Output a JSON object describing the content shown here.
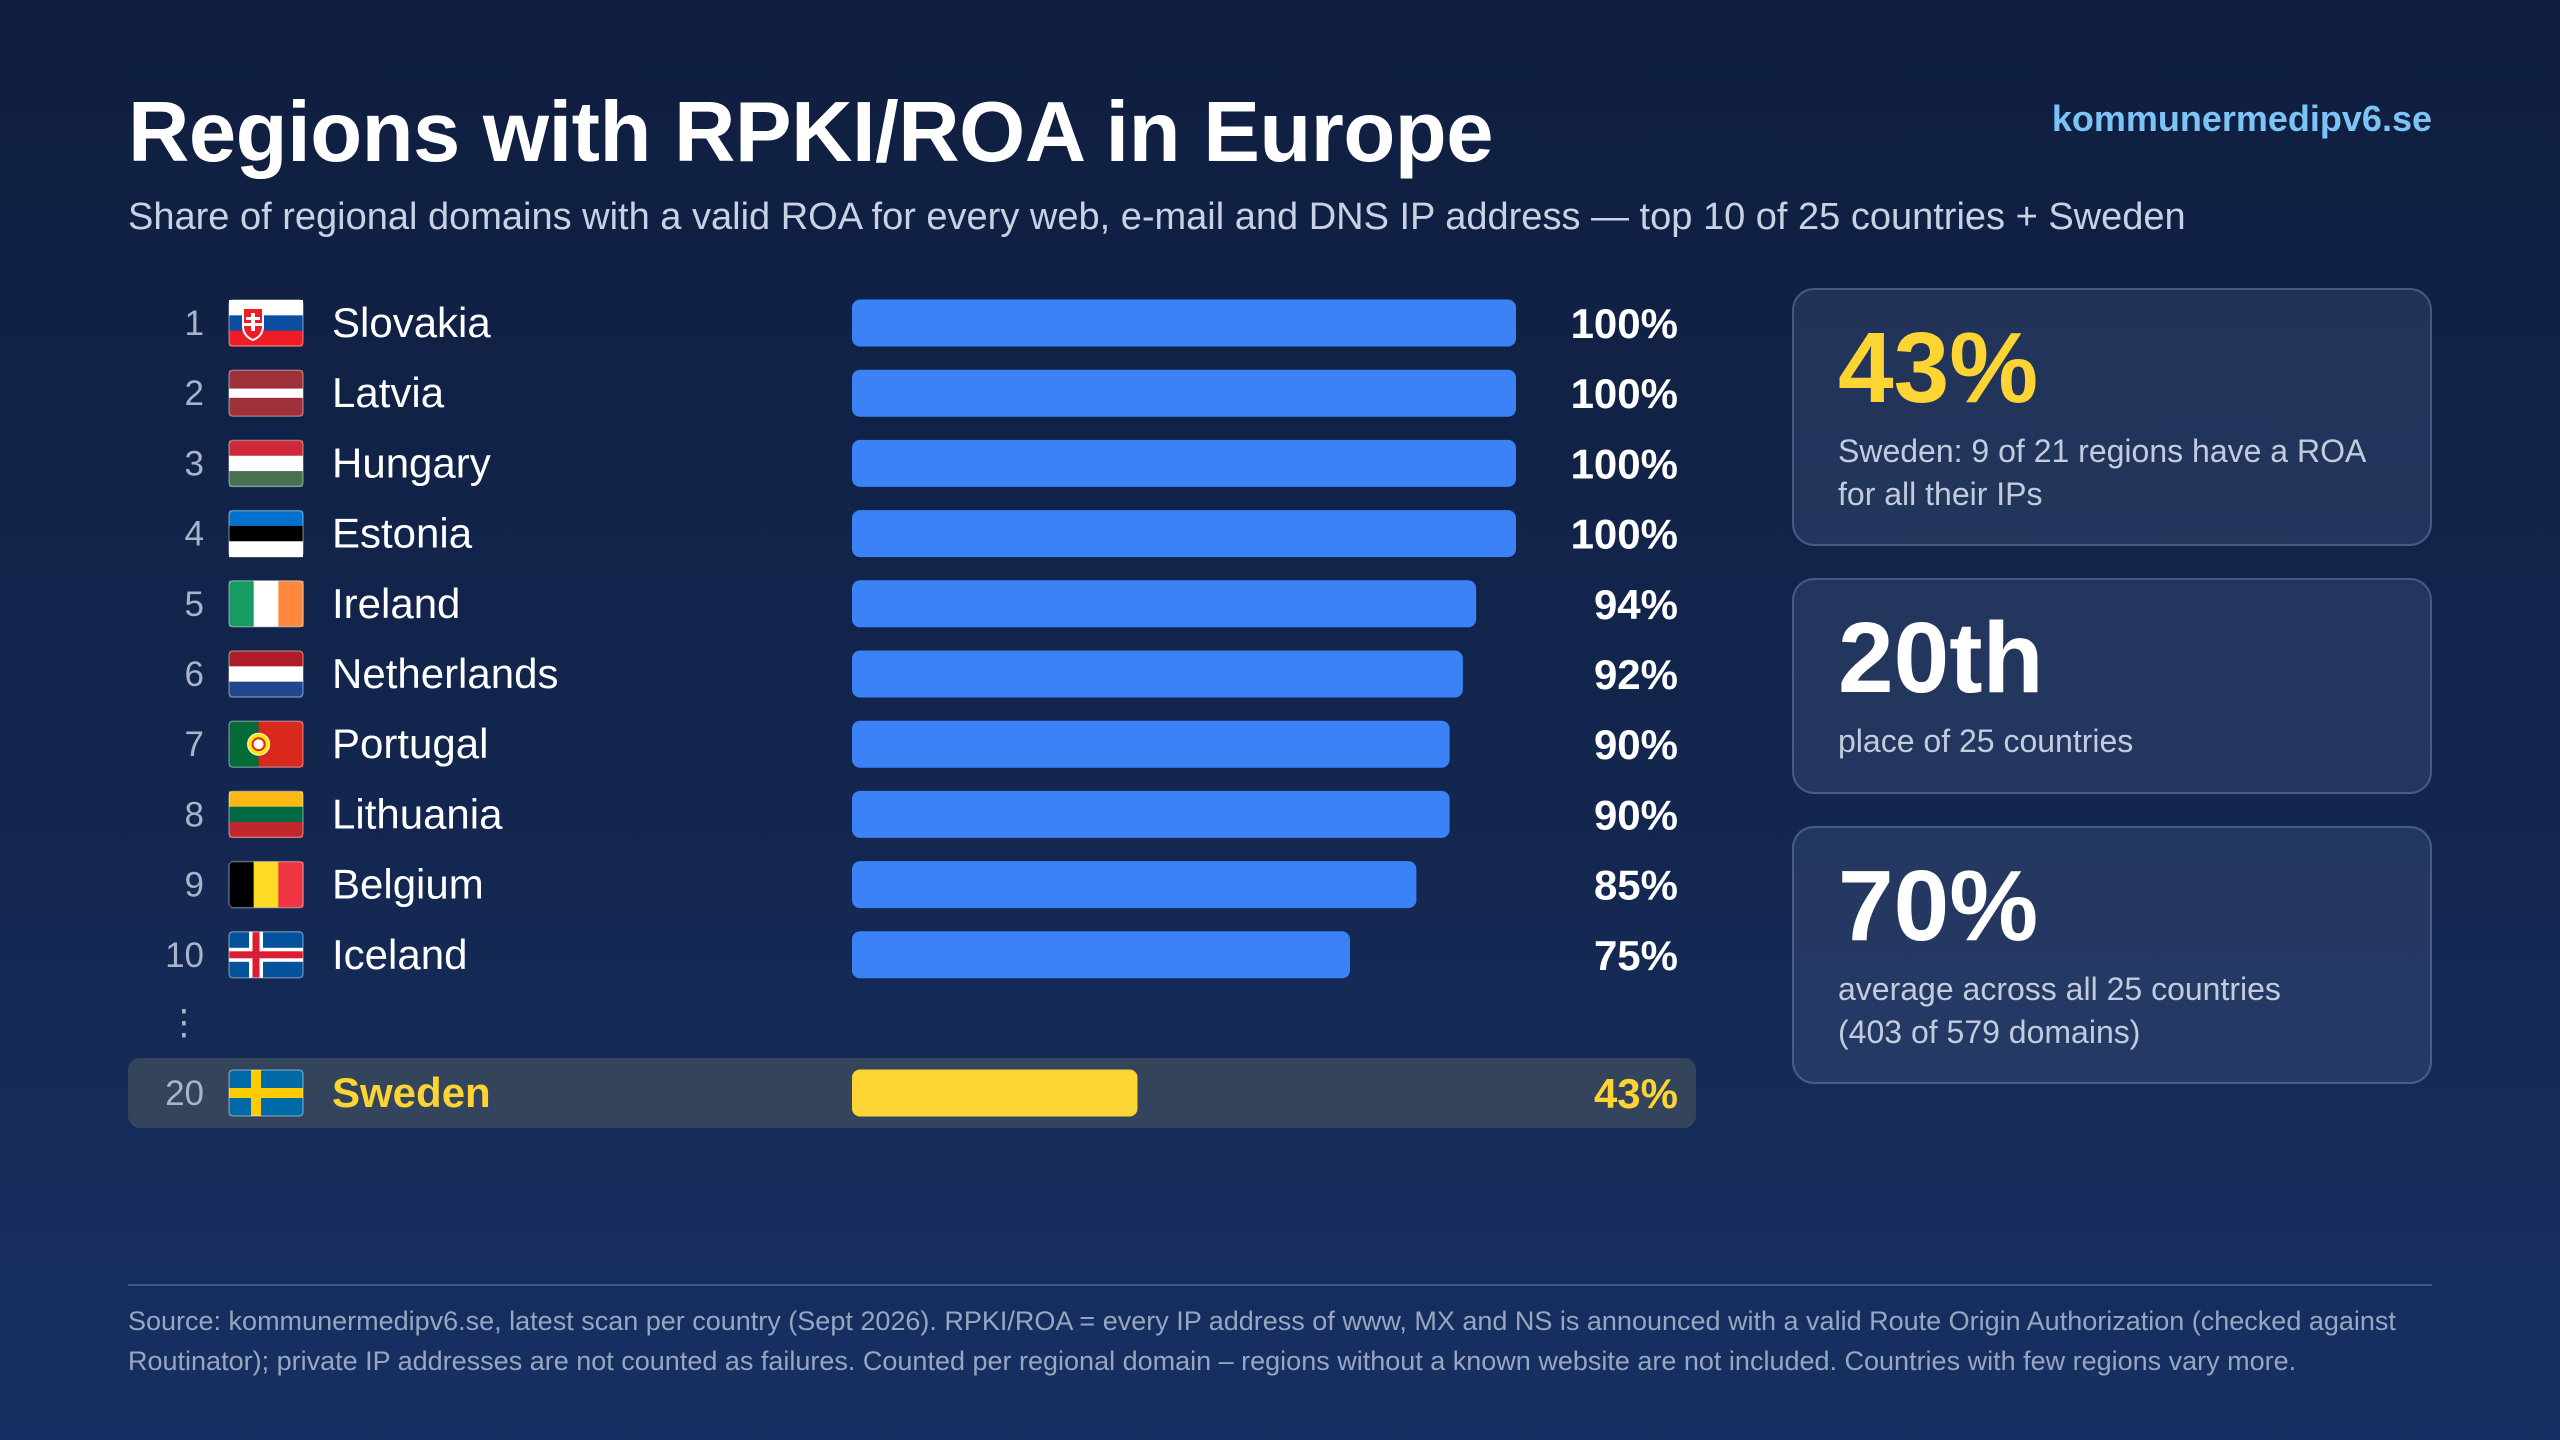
{
  "header": {
    "title": "Regions with RPKI/ROA in Europe",
    "subtitle": "Share of regional domains with a valid ROA for every web, e-mail and DNS IP address — top 10 of 25 countries + Sweden",
    "site": "kommunermedipv6.se"
  },
  "chart_data": {
    "type": "bar",
    "orientation": "horizontal",
    "categories": [
      "Slovakia",
      "Latvia",
      "Hungary",
      "Estonia",
      "Ireland",
      "Netherlands",
      "Portugal",
      "Lithuania",
      "Belgium",
      "Iceland",
      "Sweden"
    ],
    "ranks": [
      "1",
      "2",
      "3",
      "4",
      "5",
      "6",
      "7",
      "8",
      "9",
      "10",
      "20"
    ],
    "values": [
      100,
      100,
      100,
      100,
      94,
      92,
      90,
      90,
      85,
      75,
      43
    ],
    "labels": [
      "100%",
      "100%",
      "100%",
      "100%",
      "94%",
      "92%",
      "90%",
      "90%",
      "85%",
      "75%",
      "43%"
    ],
    "flags": [
      "flag-slovakia",
      "flag-latvia",
      "flag-hungary",
      "flag-estonia",
      "flag-ireland",
      "flag-netherlands",
      "flag-portugal",
      "flag-lithuania",
      "flag-belgium",
      "flag-iceland",
      "flag-sweden"
    ],
    "highlight": "Sweden",
    "gap_marker": "⋮",
    "xlim": [
      0,
      100
    ],
    "bar_color": "#3b82f6",
    "highlight_color": "#fcd534"
  },
  "cards": [
    {
      "value": "43%",
      "label": "Sweden: 9 of 21 regions have a ROA for all their IPs",
      "value_color": "#fcd534"
    },
    {
      "value": "20th",
      "label": "place of 25 countries"
    },
    {
      "value": "70%",
      "label_line1": "average across all 25 countries",
      "label_line2": "(403 of 579 domains)"
    }
  ],
  "footer": {
    "source": "Source: kommunermedipv6.se, latest scan per country (Sept 2026). RPKI/ROA = every IP address of www, MX and NS is announced with a valid Route Origin Authorization (checked against Routinator); private IP addresses are not counted as failures. Counted per regional domain – regions without a known website are not included. Countries with few regions vary more."
  }
}
